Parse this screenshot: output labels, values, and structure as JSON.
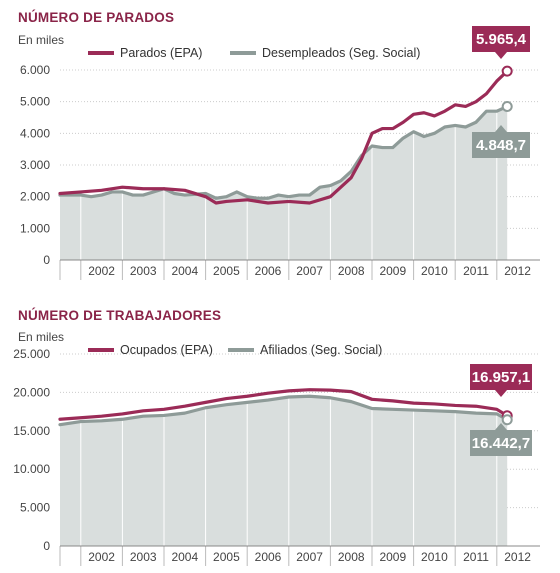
{
  "colors": {
    "series1": "#9b2b57",
    "series2": "#8e9b98",
    "area": "#d9dedd",
    "grid": "#cccccc"
  },
  "chart_data": [
    {
      "type": "line",
      "title": "NÚMERO DE PARADOS",
      "ylabel": "En miles",
      "ylim": [
        0,
        6000
      ],
      "xlim": [
        2001.5,
        2012.75
      ],
      "yticks": [
        "6.000",
        "5.000",
        "4.000",
        "3.000",
        "2.000",
        "1.000",
        "0"
      ],
      "ytick_values": [
        6000,
        5000,
        4000,
        3000,
        2000,
        1000,
        0
      ],
      "xticks": [
        "2002",
        "2003",
        "2004",
        "2005",
        "2006",
        "2007",
        "2008",
        "2009",
        "2010",
        "2011",
        "2012"
      ],
      "area_series": 1,
      "series": [
        {
          "name": "Parados (EPA)",
          "x": [
            2001.5,
            2002.0,
            2002.5,
            2003.0,
            2003.5,
            2004.0,
            2004.5,
            2005.0,
            2005.25,
            2005.5,
            2006.0,
            2006.5,
            2007.0,
            2007.5,
            2008.0,
            2008.5,
            2008.75,
            2009.0,
            2009.25,
            2009.5,
            2009.75,
            2010.0,
            2010.25,
            2010.5,
            2010.75,
            2011.0,
            2011.25,
            2011.5,
            2011.75,
            2012.0,
            2012.25
          ],
          "values": [
            2100,
            2150,
            2200,
            2300,
            2250,
            2250,
            2200,
            2000,
            1800,
            1850,
            1900,
            1800,
            1850,
            1800,
            2000,
            2600,
            3200,
            4000,
            4150,
            4150,
            4350,
            4600,
            4650,
            4550,
            4700,
            4900,
            4850,
            5000,
            5250,
            5650,
            5965.4
          ]
        },
        {
          "name": "Desempleados (Seg. Social)",
          "x": [
            2001.5,
            2002.0,
            2002.25,
            2002.5,
            2002.75,
            2003.0,
            2003.25,
            2003.5,
            2004.0,
            2004.25,
            2004.5,
            2005.0,
            2005.25,
            2005.5,
            2005.75,
            2006.0,
            2006.25,
            2006.5,
            2006.75,
            2007.0,
            2007.25,
            2007.5,
            2007.75,
            2008.0,
            2008.25,
            2008.5,
            2008.75,
            2009.0,
            2009.25,
            2009.5,
            2009.75,
            2010.0,
            2010.25,
            2010.5,
            2010.75,
            2011.0,
            2011.25,
            2011.5,
            2011.75,
            2012.0,
            2012.25
          ],
          "values": [
            2050,
            2050,
            2000,
            2050,
            2150,
            2150,
            2050,
            2050,
            2250,
            2100,
            2050,
            2100,
            1950,
            2000,
            2150,
            2000,
            1950,
            1950,
            2050,
            2000,
            2050,
            2050,
            2300,
            2350,
            2500,
            2800,
            3300,
            3600,
            3550,
            3550,
            3850,
            4050,
            3900,
            4000,
            4200,
            4250,
            4200,
            4350,
            4700,
            4700,
            4848.7
          ]
        }
      ],
      "callouts": [
        "5.965,4",
        "4.848,7"
      ]
    },
    {
      "type": "line",
      "title": "NÚMERO DE TRABAJADORES",
      "ylabel": "En miles",
      "ylim": [
        0,
        25000
      ],
      "xlim": [
        2001.5,
        2012.75
      ],
      "yticks": [
        "25.000",
        "20.000",
        "15.000",
        "10.000",
        "5.000",
        "0"
      ],
      "ytick_values": [
        25000,
        20000,
        15000,
        10000,
        5000,
        0
      ],
      "xticks": [
        "2002",
        "2003",
        "2004",
        "2005",
        "2006",
        "2007",
        "2008",
        "2009",
        "2010",
        "2011",
        "2012"
      ],
      "area_series": 1,
      "series": [
        {
          "name": "Ocupados (EPA)",
          "x": [
            2001.5,
            2002.0,
            2002.5,
            2003.0,
            2003.5,
            2004.0,
            2004.5,
            2005.0,
            2005.5,
            2006.0,
            2006.5,
            2007.0,
            2007.5,
            2008.0,
            2008.5,
            2009.0,
            2009.5,
            2010.0,
            2010.5,
            2011.0,
            2011.5,
            2012.0,
            2012.25
          ],
          "values": [
            16500,
            16700,
            16900,
            17200,
            17600,
            17800,
            18200,
            18700,
            19200,
            19500,
            19900,
            20200,
            20350,
            20300,
            20100,
            19100,
            18900,
            18600,
            18500,
            18300,
            18200,
            17800,
            16957.1
          ]
        },
        {
          "name": "Afiliados (Seg. Social)",
          "x": [
            2001.5,
            2002.0,
            2002.5,
            2003.0,
            2003.5,
            2004.0,
            2004.5,
            2005.0,
            2005.5,
            2006.0,
            2006.5,
            2007.0,
            2007.5,
            2008.0,
            2008.5,
            2009.0,
            2009.5,
            2010.0,
            2010.5,
            2011.0,
            2011.5,
            2012.0,
            2012.25
          ],
          "values": [
            15800,
            16200,
            16300,
            16500,
            16900,
            17000,
            17300,
            18000,
            18400,
            18700,
            19000,
            19400,
            19500,
            19300,
            18800,
            17900,
            17800,
            17700,
            17600,
            17500,
            17300,
            17200,
            16442.7
          ]
        }
      ],
      "callouts": [
        "16.957,1",
        "16.442,7"
      ]
    }
  ]
}
